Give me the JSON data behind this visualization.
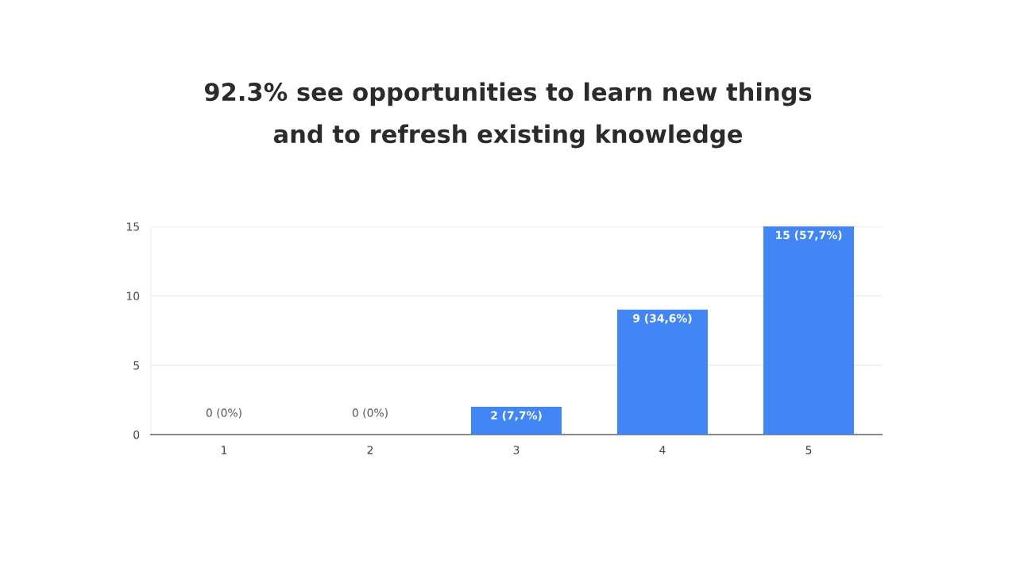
{
  "chart_data": {
    "type": "bar",
    "title": "92.3% see opportunities to learn new things\nand to refresh existing knowledge",
    "categories": [
      "1",
      "2",
      "3",
      "4",
      "5"
    ],
    "values": [
      0,
      0,
      2,
      9,
      15
    ],
    "value_labels": [
      "0 (0%)",
      "0 (0%)",
      "2 (7,7%)",
      "9 (34,6%)",
      "15 (57,7%)"
    ],
    "color": "#4285f4",
    "ylim": [
      0,
      15
    ],
    "yticks": [
      0,
      5,
      10,
      15
    ],
    "grid": "y"
  }
}
